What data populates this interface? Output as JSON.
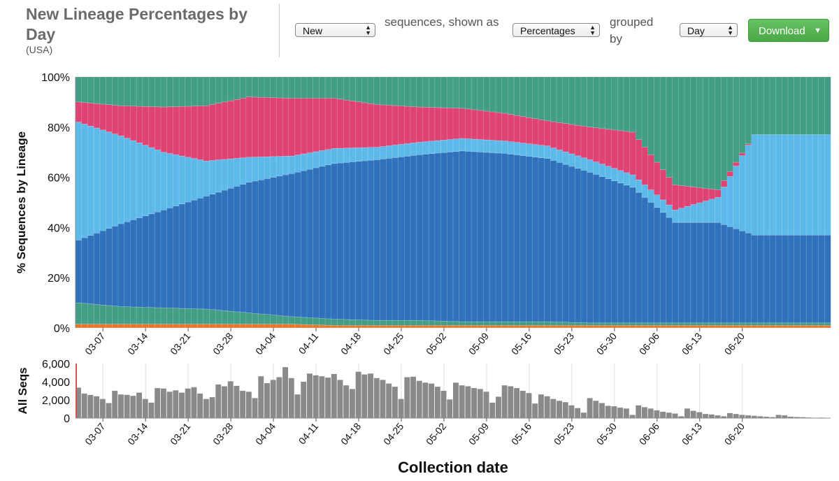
{
  "header": {
    "title": "New Lineage Percentages by Day",
    "subtitle": "(USA)"
  },
  "controls": {
    "seq_select": "New",
    "text1": "sequences, shown as",
    "mode_select": "Percentages",
    "text2": "grouped by",
    "group_select": "Day",
    "download_label": "Download"
  },
  "colors": {
    "teal": "#449e85",
    "pink": "#df4374",
    "light_blue": "#5db9e9",
    "dark_blue": "#2f72bb",
    "orange": "#e8772e",
    "bars_gray": "#8a8a8a"
  },
  "chart_data": [
    {
      "type": "area",
      "stacked": true,
      "ylabel": "% Sequences by Lineage",
      "xlabel": "Collection date",
      "ylim": [
        0,
        100
      ],
      "y_ticks": [
        "0%",
        "20%",
        "40%",
        "60%",
        "80%",
        "100%"
      ],
      "x_ticks": [
        "03-07",
        "03-14",
        "03-21",
        "03-28",
        "04-04",
        "04-11",
        "04-18",
        "04-25",
        "05-02",
        "05-09",
        "05-16",
        "05-23",
        "05-30",
        "06-06",
        "06-13",
        "06-20"
      ],
      "grid": "vertical",
      "series_colors": [
        "#e8772e",
        "#449e85",
        "#2f72bb",
        "#5db9e9",
        "#df4374",
        "#449e85"
      ],
      "sample_x": [
        "03-03",
        "03-10",
        "03-17",
        "03-24",
        "03-31",
        "04-07",
        "04-14",
        "04-21",
        "04-28",
        "05-05",
        "05-12",
        "05-19",
        "05-26",
        "06-02",
        "06-09",
        "06-16",
        "06-22"
      ],
      "series": [
        {
          "values": [
            1.5,
            1.5,
            1.5,
            1.5,
            1.5,
            1.5,
            1,
            1,
            1,
            1,
            1,
            1,
            1,
            1,
            1,
            1,
            1
          ]
        },
        {
          "values": [
            8.5,
            7,
            6.5,
            6,
            4.5,
            3,
            2.5,
            2,
            2,
            1.5,
            1.5,
            1.5,
            1,
            1,
            1,
            1,
            1
          ]
        },
        {
          "values": [
            25,
            33,
            39,
            45,
            52,
            57,
            62,
            64,
            66,
            68,
            67,
            65,
            60,
            54,
            40,
            40,
            35
          ]
        },
        {
          "values": [
            47,
            35,
            23,
            14,
            10,
            7,
            6,
            5,
            5,
            5,
            5,
            5,
            5,
            5,
            5,
            10,
            40
          ]
        },
        {
          "values": [
            8,
            12,
            18,
            22,
            24,
            23,
            20,
            17,
            14,
            12,
            11,
            10,
            13,
            17,
            10,
            3,
            0
          ]
        },
        {
          "values": [
            10,
            11.5,
            12,
            11.5,
            8,
            8.5,
            8.5,
            11,
            12,
            12.5,
            14.5,
            17.5,
            20,
            22,
            43,
            45,
            23
          ]
        }
      ]
    },
    {
      "type": "bar",
      "ylabel": "All Seqs",
      "ylim": [
        0,
        6000
      ],
      "y_ticks": [
        "0",
        "2,000",
        "4,000",
        "6,000"
      ],
      "x_ticks": [
        "03-07",
        "03-14",
        "03-21",
        "03-28",
        "04-04",
        "04-11",
        "04-18",
        "04-25",
        "05-02",
        "05-09",
        "05-16",
        "05-23",
        "05-30",
        "06-06",
        "06-13",
        "06-20"
      ],
      "values": [
        3350,
        2700,
        2550,
        2400,
        2100,
        1650,
        3000,
        2600,
        2550,
        2450,
        2800,
        2100,
        1700,
        3300,
        3250,
        2900,
        3050,
        2800,
        3250,
        3400,
        2700,
        2100,
        2300,
        3700,
        3500,
        4050,
        3550,
        3000,
        2900,
        2200,
        4600,
        3850,
        4200,
        4500,
        5600,
        4400,
        2600,
        4000,
        4900,
        4700,
        4600,
        4450,
        4850,
        4200,
        3600,
        3200,
        5100,
        4800,
        4900,
        4400,
        4200,
        3800,
        3450,
        2100,
        4500,
        4550,
        4100,
        3900,
        3800,
        3450,
        3000,
        2050,
        3900,
        3600,
        3500,
        3300,
        3200,
        2900,
        1700,
        2350,
        3600,
        3500,
        3300,
        3000,
        2750,
        1600,
        2600,
        2400,
        2100,
        1900,
        1750,
        1400,
        1100,
        600,
        2200,
        1900,
        1650,
        1350,
        1300,
        1150,
        1050,
        350,
        1400,
        1200,
        1050,
        850,
        700,
        600,
        500,
        200,
        1050,
        800,
        650,
        450,
        400,
        300,
        200,
        550,
        450,
        350,
        300,
        250,
        200,
        150,
        100,
        350,
        300,
        150,
        120,
        100,
        60,
        20,
        50,
        20
      ]
    }
  ]
}
